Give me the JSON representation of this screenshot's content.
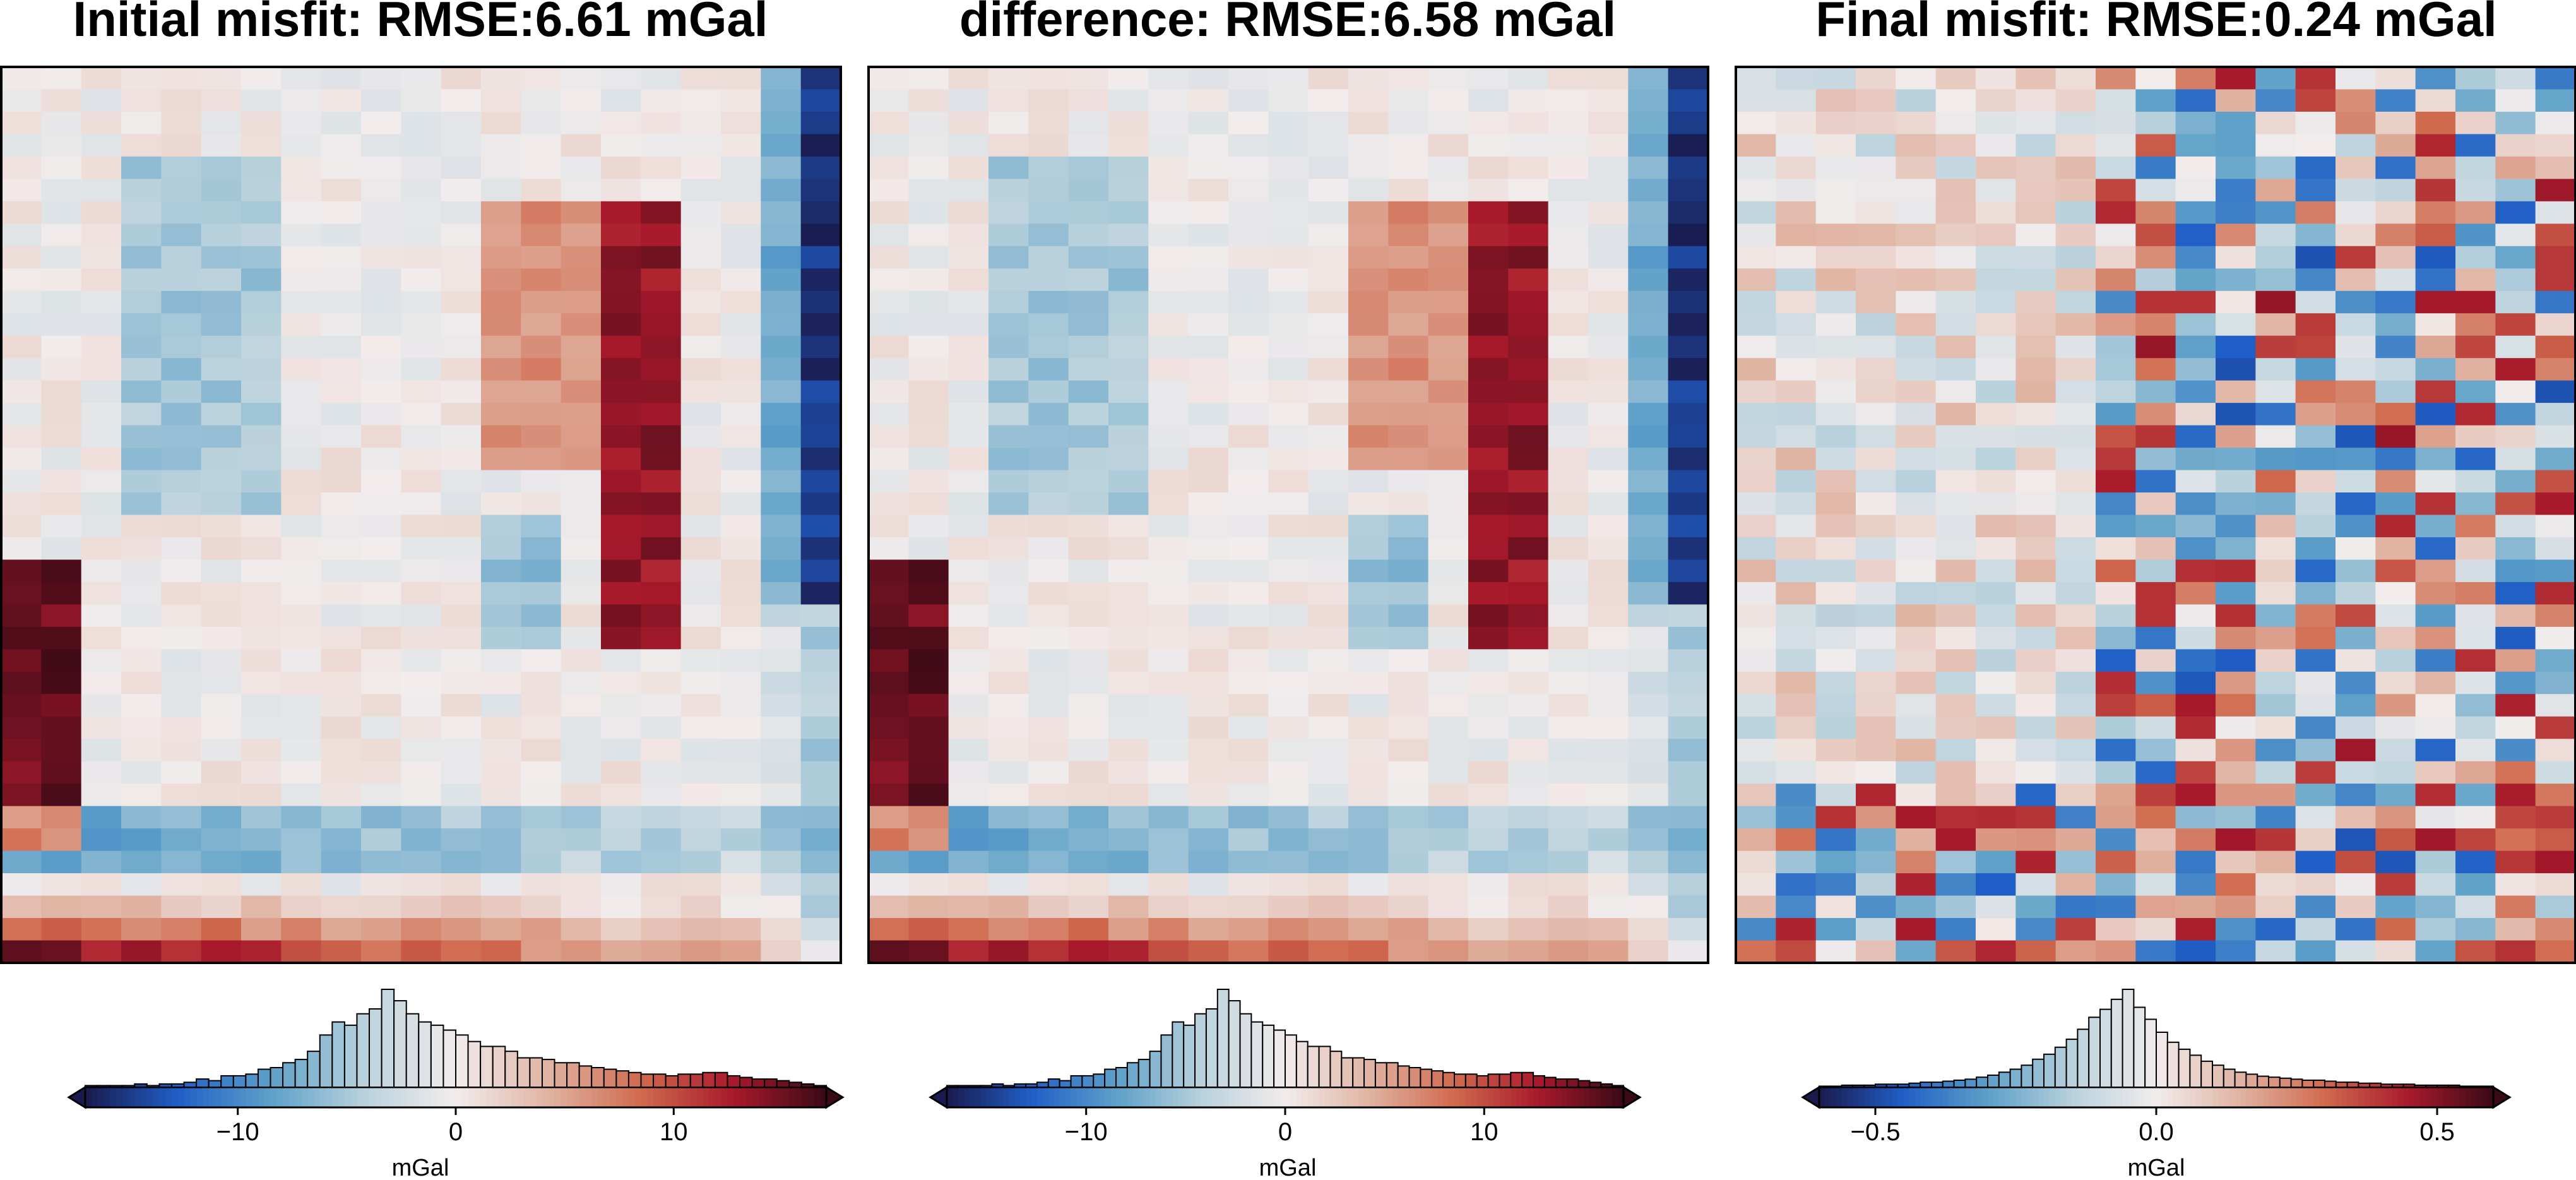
{
  "chart_data": [
    {
      "type": "heatmap",
      "panel": "initial",
      "title": "Initial misfit: RMSE:6.61 mGal",
      "grid_size": [
        21,
        40
      ],
      "colorbar": {
        "label": "mGal",
        "range": [
          -17,
          17
        ],
        "ticks": [
          -10,
          0,
          10
        ],
        "tick_labels": [
          "−10",
          "0",
          "10"
        ],
        "extend": "both",
        "histogram": [
          1,
          1,
          1,
          1,
          2,
          1,
          2,
          2,
          3,
          5,
          4,
          7,
          7,
          8,
          11,
          12,
          15,
          17,
          22,
          32,
          40,
          38,
          45,
          48,
          60,
          53,
          45,
          40,
          38,
          35,
          32,
          28,
          25,
          25,
          22,
          18,
          18,
          17,
          15,
          15,
          13,
          12,
          11,
          10,
          9,
          8,
          8,
          7,
          8,
          8,
          9,
          9,
          7,
          6,
          5,
          5,
          4,
          3,
          2,
          1
        ]
      }
    },
    {
      "type": "heatmap",
      "panel": "difference",
      "title": "difference: RMSE:6.58 mGal",
      "grid_size": [
        21,
        40
      ],
      "colorbar": {
        "label": "mGal",
        "range": [
          -17,
          17
        ],
        "ticks": [
          -10,
          0,
          10
        ],
        "tick_labels": [
          "−10",
          "0",
          "10"
        ],
        "extend": "both",
        "histogram": [
          1,
          1,
          1,
          1,
          2,
          1,
          2,
          2,
          3,
          5,
          4,
          7,
          7,
          8,
          11,
          12,
          15,
          17,
          22,
          32,
          40,
          38,
          45,
          48,
          60,
          53,
          45,
          40,
          38,
          35,
          32,
          28,
          25,
          25,
          22,
          18,
          18,
          17,
          15,
          15,
          13,
          12,
          11,
          10,
          9,
          8,
          8,
          7,
          8,
          8,
          9,
          9,
          7,
          6,
          5,
          5,
          4,
          3,
          2,
          1
        ]
      }
    },
    {
      "type": "heatmap",
      "panel": "final",
      "title": "Final misfit: RMSE:0.24 mGal",
      "grid_size": [
        21,
        40
      ],
      "colorbar": {
        "label": "mGal",
        "range": [
          -0.6,
          0.6
        ],
        "ticks": [
          -0.5,
          0.0,
          0.5
        ],
        "tick_labels": [
          "−0.5",
          "0.0",
          "0.5"
        ],
        "extend": "both",
        "histogram": [
          1,
          1,
          2,
          2,
          2,
          3,
          3,
          3,
          4,
          5,
          5,
          6,
          7,
          8,
          10,
          12,
          15,
          18,
          22,
          28,
          33,
          40,
          48,
          58,
          70,
          78,
          88,
          98,
          80,
          68,
          55,
          45,
          38,
          32,
          26,
          22,
          18,
          15,
          13,
          11,
          10,
          9,
          8,
          7,
          7,
          6,
          5,
          5,
          4,
          4,
          3,
          3,
          3,
          2,
          2,
          2,
          2,
          1,
          1,
          1
        ]
      }
    }
  ],
  "colors": {
    "colormap": [
      "#1a1a4e",
      "#1f5fc7",
      "#5da0c8",
      "#b8d1dc",
      "#f2ecec",
      "#e0b3a2",
      "#d06a4e",
      "#a8192b",
      "#3a0a16"
    ],
    "frame": "#000000",
    "histogram_edge": "#000000"
  }
}
